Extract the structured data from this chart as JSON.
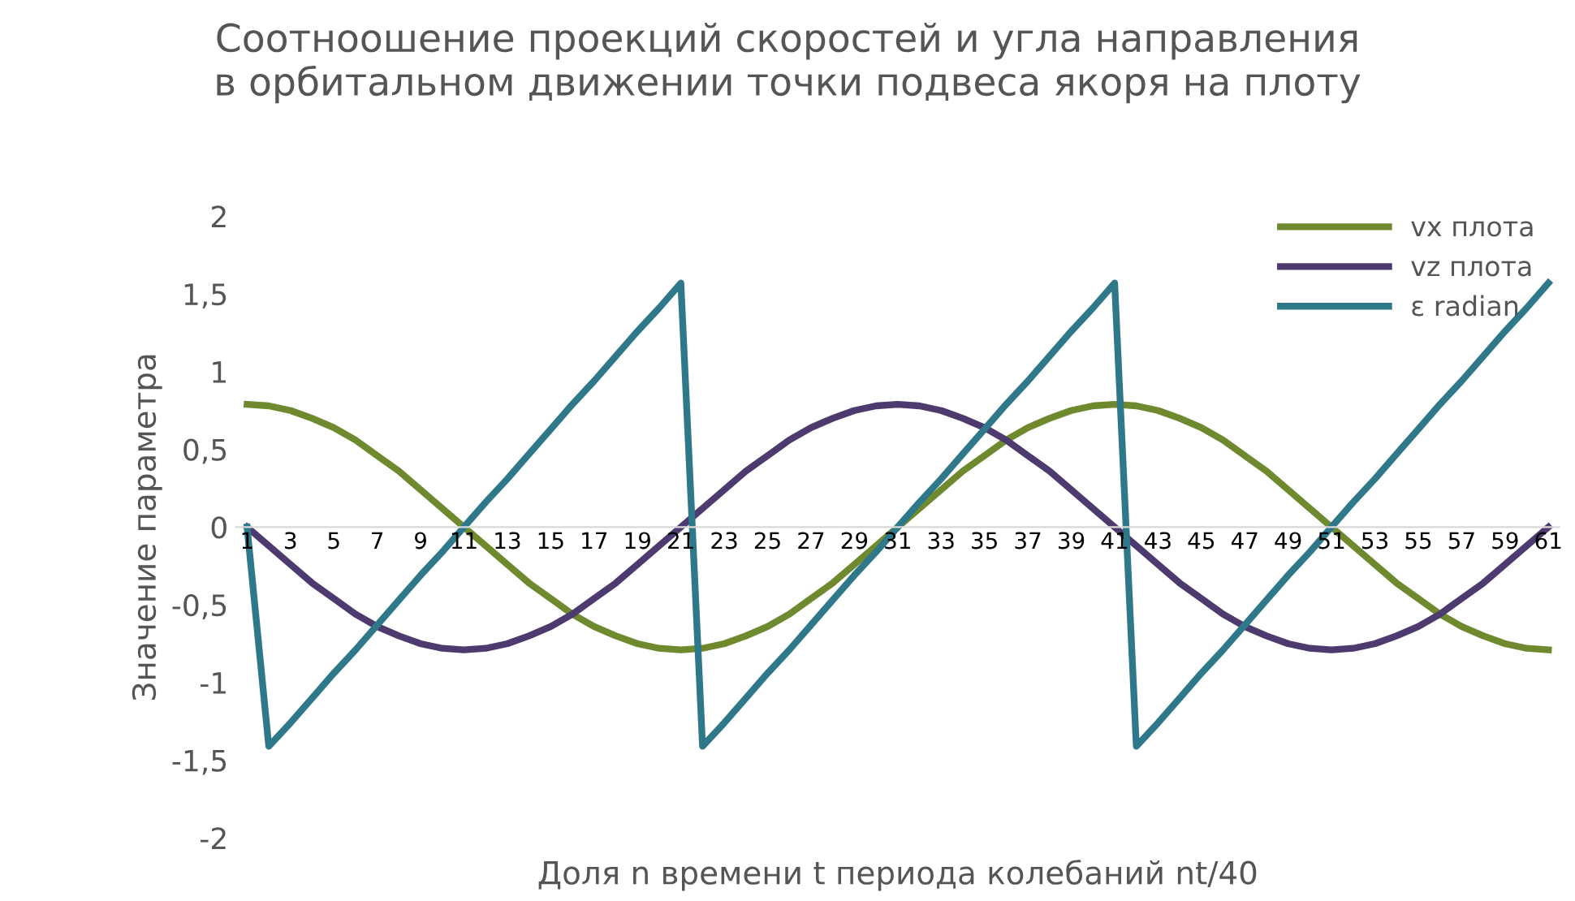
{
  "chart_data": {
    "type": "line",
    "title": "Соотноошение проекций скоростей и угла направления\nв орбитальном движении точки подвеса якоря на плоту",
    "xlabel": "Доля n времени t периода колебаний nt/40",
    "ylabel": "Значение параметра",
    "categories": [
      "1",
      null,
      "3",
      null,
      "5",
      null,
      "7",
      null,
      "9",
      null,
      "11",
      null,
      "13",
      null,
      "15",
      null,
      "17",
      null,
      "19",
      null,
      "21",
      null,
      "23",
      null,
      "25",
      null,
      "27",
      null,
      "29",
      null,
      "31",
      null,
      "33",
      null,
      "35",
      null,
      "37",
      null,
      "39",
      null,
      "41",
      null,
      "43",
      null,
      "45",
      null,
      "47",
      null,
      "49",
      null,
      "51",
      null,
      "53",
      null,
      "55",
      null,
      "57",
      null,
      "59",
      null,
      "61"
    ],
    "series": [
      {
        "name": "vx плота",
        "color": "#6f8a2e",
        "values": [
          0.79,
          0.78,
          0.75,
          0.7,
          0.64,
          0.56,
          0.46,
          0.36,
          0.24,
          0.12,
          0,
          -0.12,
          -0.24,
          -0.36,
          -0.46,
          -0.56,
          -0.64,
          -0.7,
          -0.75,
          -0.78,
          -0.79,
          -0.78,
          -0.75,
          -0.7,
          -0.64,
          -0.56,
          -0.46,
          -0.36,
          -0.24,
          -0.12,
          0,
          0.12,
          0.24,
          0.36,
          0.46,
          0.56,
          0.64,
          0.7,
          0.75,
          0.78,
          0.79,
          0.78,
          0.75,
          0.7,
          0.64,
          0.56,
          0.46,
          0.36,
          0.24,
          0.12,
          0,
          -0.12,
          -0.24,
          -0.36,
          -0.46,
          -0.56,
          -0.64,
          -0.7,
          -0.75,
          -0.78,
          -0.79
        ]
      },
      {
        "name": "vz плота",
        "color": "#4d3a6e",
        "values": [
          0,
          -0.12,
          -0.24,
          -0.36,
          -0.46,
          -0.56,
          -0.64,
          -0.7,
          -0.75,
          -0.78,
          -0.79,
          -0.78,
          -0.75,
          -0.7,
          -0.64,
          -0.56,
          -0.46,
          -0.36,
          -0.24,
          -0.12,
          0,
          0.12,
          0.24,
          0.36,
          0.46,
          0.56,
          0.64,
          0.7,
          0.75,
          0.78,
          0.79,
          0.78,
          0.75,
          0.7,
          0.64,
          0.56,
          0.46,
          0.36,
          0.24,
          0.12,
          0,
          -0.12,
          -0.24,
          -0.36,
          -0.46,
          -0.56,
          -0.64,
          -0.7,
          -0.75,
          -0.78,
          -0.79,
          -0.78,
          -0.75,
          -0.7,
          -0.64,
          -0.56,
          -0.46,
          -0.36,
          -0.24,
          -0.12,
          0
        ]
      },
      {
        "name": "ε radian",
        "color": "#2f7889",
        "values": [
          0,
          -1.41,
          -1.26,
          -1.1,
          -0.94,
          -0.79,
          -0.63,
          -0.47,
          -0.31,
          -0.16,
          0,
          0.16,
          0.31,
          0.47,
          0.63,
          0.79,
          0.94,
          1.1,
          1.26,
          1.41,
          1.57,
          -1.41,
          -1.26,
          -1.1,
          -0.94,
          -0.79,
          -0.63,
          -0.47,
          -0.31,
          -0.16,
          0,
          0.16,
          0.31,
          0.47,
          0.63,
          0.79,
          0.94,
          1.1,
          1.26,
          1.41,
          1.57,
          -1.41,
          -1.26,
          -1.1,
          -0.94,
          -0.79,
          -0.63,
          -0.47,
          -0.31,
          -0.16,
          0,
          0.16,
          0.31,
          0.47,
          0.63,
          0.79,
          0.94,
          1.1,
          1.26,
          1.41,
          1.57
        ]
      }
    ],
    "ylim": [
      -2,
      2
    ],
    "yticks": [
      -2,
      {
        "value": -1.5,
        "label": "-1,5"
      },
      -1,
      {
        "value": -0.5,
        "label": "-0,5"
      },
      0,
      {
        "value": 0.5,
        "label": "0,5"
      },
      1,
      {
        "value": 1.5,
        "label": "1,5"
      },
      2
    ],
    "legend": "top right",
    "grid": false,
    "marker": "none",
    "line_style": "solid"
  }
}
